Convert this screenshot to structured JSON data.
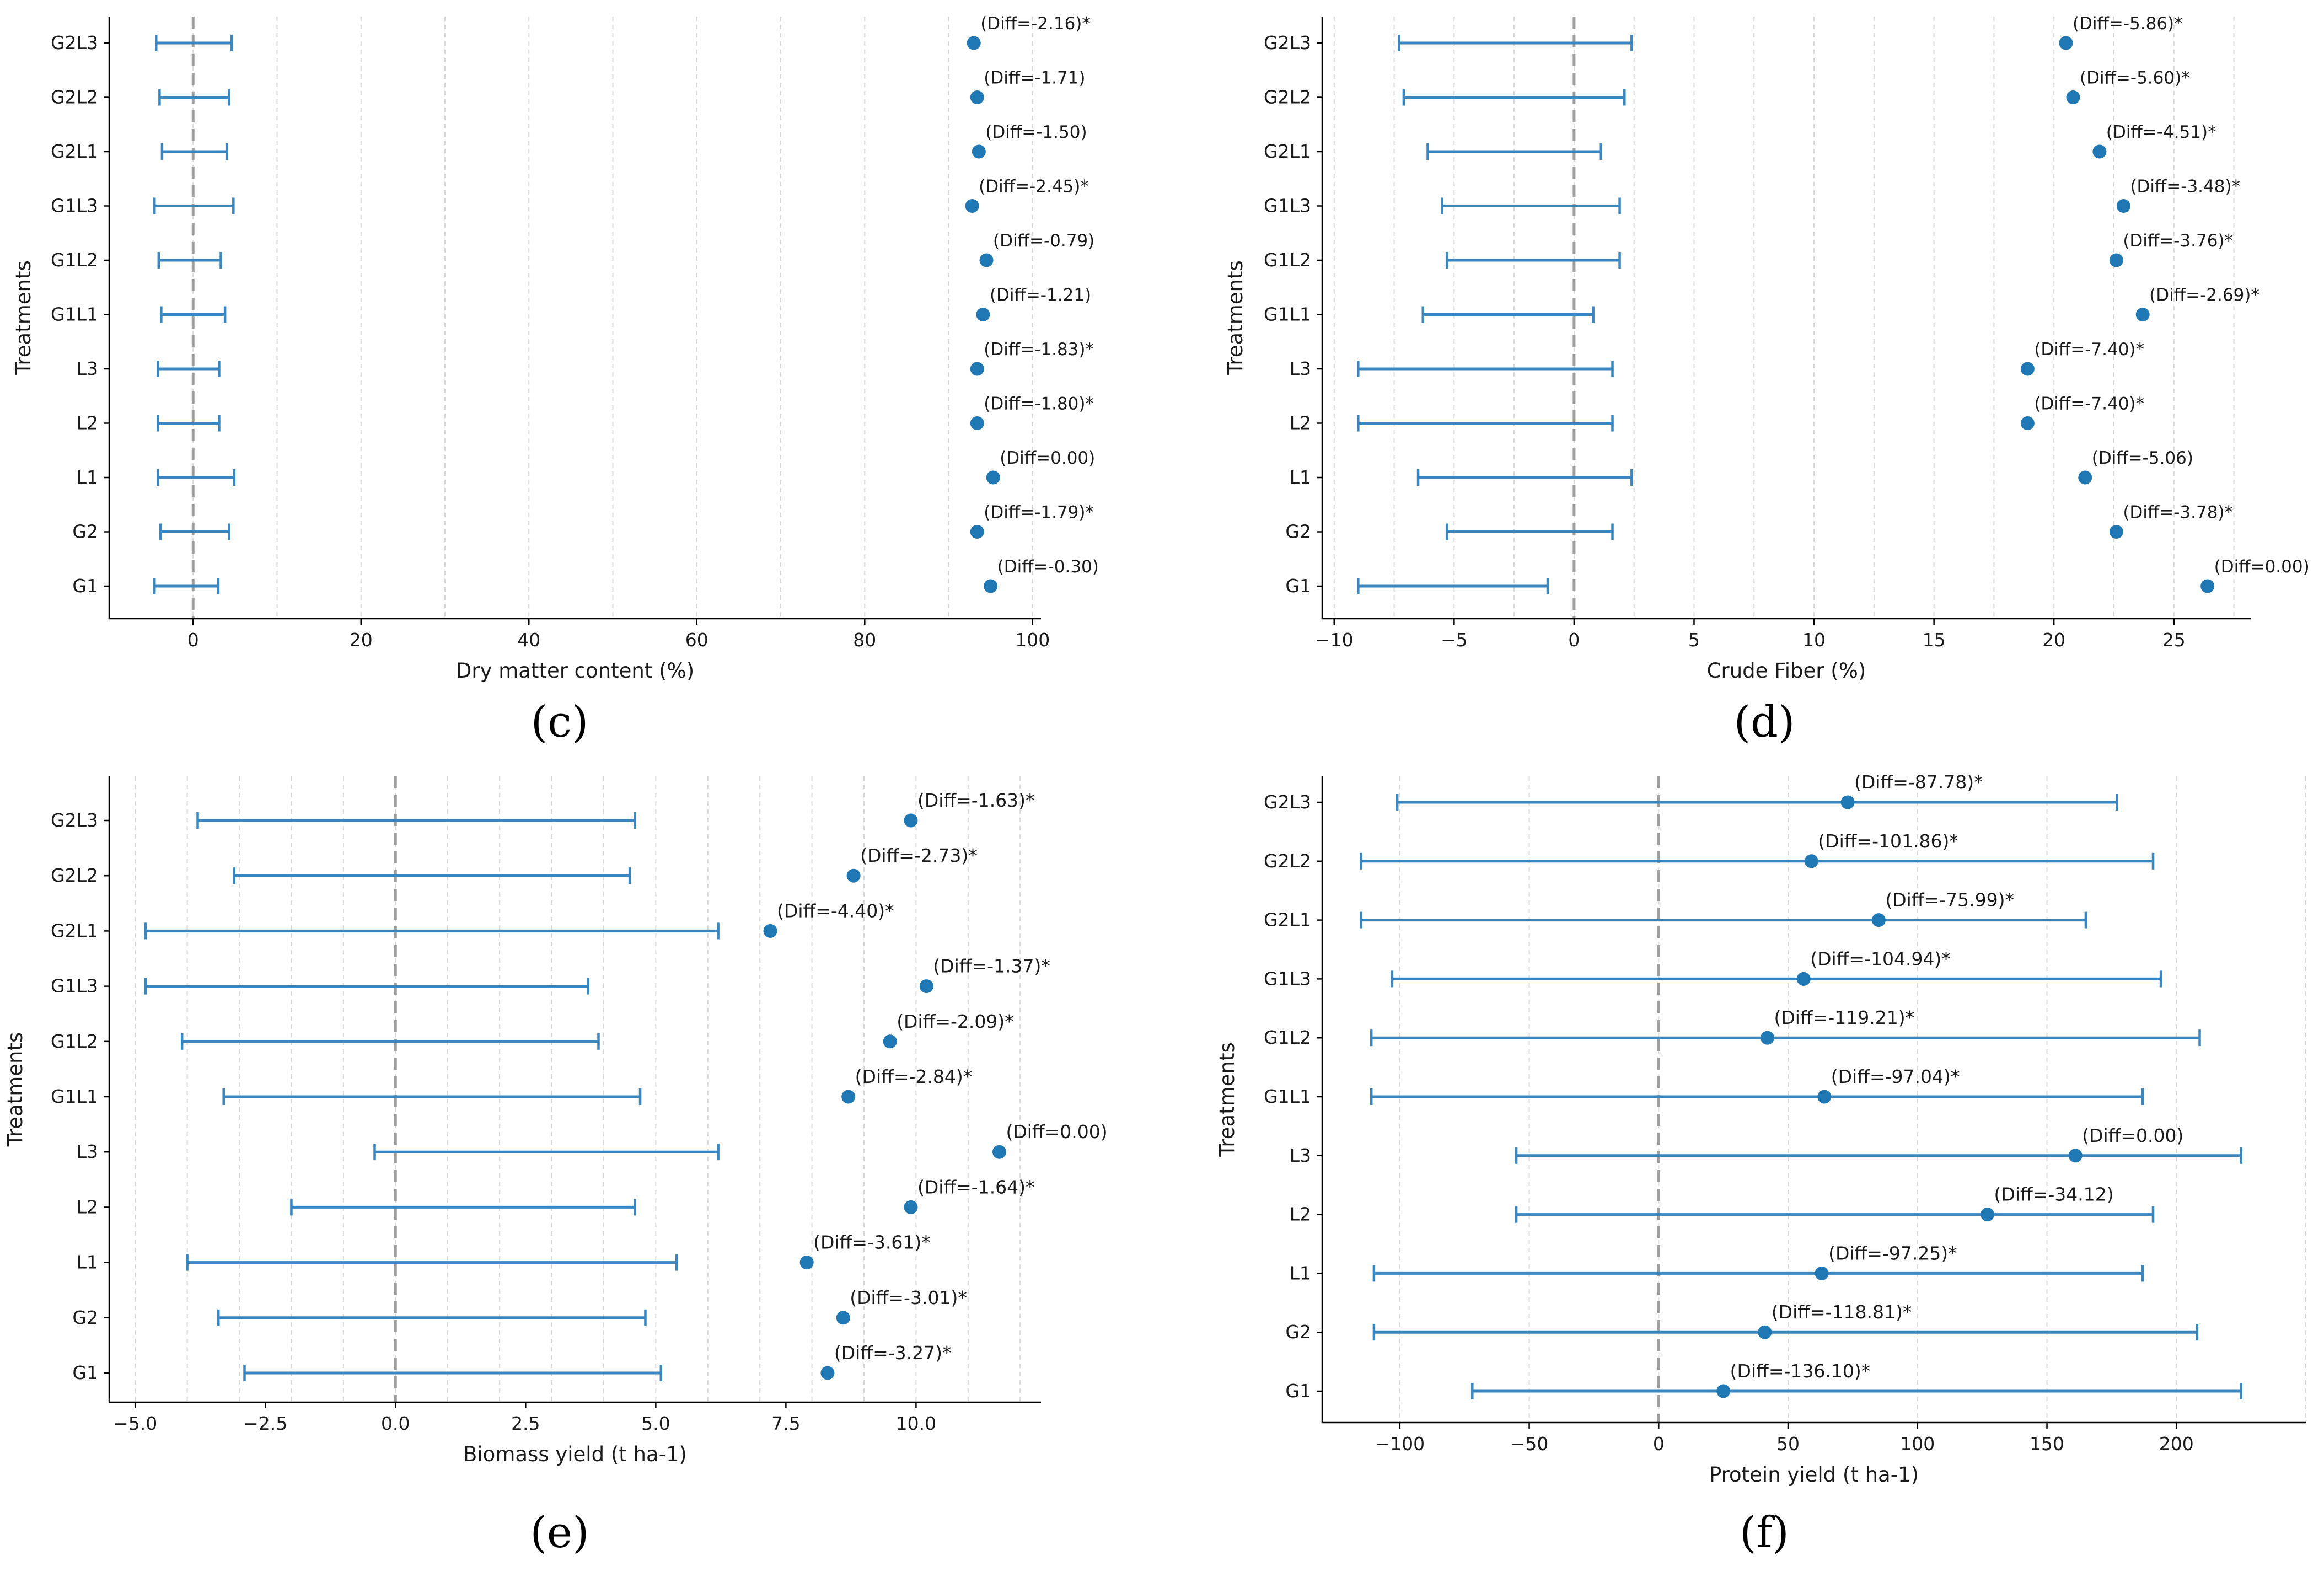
{
  "colors": {
    "series": "#1f77b4",
    "bar": "#3a86c0",
    "zero_line": "#9e9e9e",
    "grid": "#d6d6d6",
    "axis": "#000000"
  },
  "chart_data": [
    {
      "panel": "(c)",
      "type": "scatter",
      "title": "",
      "xlabel": "Dry matter content (%)",
      "ylabel": "Treatments",
      "xlim": [
        -10,
        101
      ],
      "xticks": [
        0,
        20,
        40,
        60,
        80,
        100
      ],
      "xtick_labels": [
        "0",
        "20",
        "40",
        "60",
        "80",
        "100"
      ],
      "grid_x": [
        0,
        10,
        20,
        30,
        40,
        50,
        60,
        70,
        80,
        90,
        100
      ],
      "categories": [
        "G2L3",
        "G2L2",
        "G2L1",
        "G1L3",
        "G1L2",
        "G1L1",
        "L3",
        "L2",
        "L1",
        "G2",
        "G1"
      ],
      "means": [
        93.0,
        93.4,
        93.6,
        92.8,
        94.5,
        94.1,
        93.4,
        93.4,
        95.3,
        93.4,
        95.0
      ],
      "ci_low": [
        -4.4,
        -4.0,
        -3.7,
        -4.6,
        -4.1,
        -3.8,
        -4.2,
        -4.2,
        -4.2,
        -3.9,
        -4.6
      ],
      "ci_high": [
        4.6,
        4.3,
        4.0,
        4.8,
        3.3,
        3.8,
        3.1,
        3.1,
        4.9,
        4.3,
        3.0
      ],
      "labels": [
        "(Diff=-2.16)*",
        "(Diff=-1.71)",
        "(Diff=-1.50)",
        "(Diff=-2.45)*",
        "(Diff=-0.79)",
        "(Diff=-1.21)",
        "(Diff=-1.83)*",
        "(Diff=-1.80)*",
        "(Diff=0.00)",
        "(Diff=-1.79)*",
        "(Diff=-0.30)"
      ]
    },
    {
      "panel": "(d)",
      "type": "scatter",
      "title": "",
      "xlabel": "Crude Fiber (%)",
      "ylabel": "Treatments",
      "xlim": [
        -10.5,
        28.2
      ],
      "xticks": [
        -10,
        -5,
        0,
        5,
        10,
        15,
        20,
        25
      ],
      "xtick_labels": [
        "−10",
        "−5",
        "0",
        "5",
        "10",
        "15",
        "20",
        "25"
      ],
      "grid_x": [
        -10,
        -7.5,
        -5,
        -2.5,
        0,
        2.5,
        5,
        7.5,
        10,
        12.5,
        15,
        17.5,
        20,
        22.5,
        25,
        27.5
      ],
      "categories": [
        "G2L3",
        "G2L2",
        "G2L1",
        "G1L3",
        "G1L2",
        "G1L1",
        "L3",
        "L2",
        "L1",
        "G2",
        "G1"
      ],
      "means": [
        20.5,
        20.8,
        21.9,
        22.9,
        22.6,
        23.7,
        18.9,
        18.9,
        21.3,
        22.6,
        26.4
      ],
      "ci_low": [
        -7.3,
        -7.1,
        -6.1,
        -5.5,
        -5.3,
        -6.3,
        -9.0,
        -9.0,
        -6.5,
        -5.3,
        -9.0
      ],
      "ci_high": [
        2.4,
        2.1,
        1.1,
        1.9,
        1.9,
        0.8,
        1.6,
        1.6,
        2.4,
        1.6,
        -1.1
      ],
      "labels": [
        "(Diff=-5.86)*",
        "(Diff=-5.60)*",
        "(Diff=-4.51)*",
        "(Diff=-3.48)*",
        "(Diff=-3.76)*",
        "(Diff=-2.69)*",
        "(Diff=-7.40)*",
        "(Diff=-7.40)*",
        "(Diff=-5.06)",
        "(Diff=-3.78)*",
        "(Diff=0.00)"
      ]
    },
    {
      "panel": "(e)",
      "type": "scatter",
      "title": "",
      "xlabel": "Biomass yield (t ha-1)",
      "ylabel": "Treatments",
      "xlim": [
        -5.5,
        12.4
      ],
      "xticks": [
        -5.0,
        -2.5,
        0.0,
        2.5,
        5.0,
        7.5,
        10.0
      ],
      "xtick_labels": [
        "−5.0",
        "−2.5",
        "0.0",
        "2.5",
        "5.0",
        "7.5",
        "10.0"
      ],
      "grid_x": [
        -5,
        -4,
        -3,
        -2,
        -1,
        0,
        1,
        2,
        3,
        4,
        5,
        6,
        7,
        8,
        9,
        10,
        11,
        12
      ],
      "categories": [
        "G2L3",
        "G2L2",
        "G2L1",
        "G1L3",
        "G1L2",
        "G1L1",
        "L3",
        "L2",
        "L1",
        "G2",
        "G1"
      ],
      "means": [
        9.9,
        8.8,
        7.2,
        10.2,
        9.5,
        8.7,
        11.6,
        9.9,
        7.9,
        8.6,
        8.3
      ],
      "ci_low": [
        -3.8,
        -3.1,
        -4.8,
        -4.8,
        -4.1,
        -3.3,
        -0.4,
        -2.0,
        -4.0,
        -3.4,
        -2.9
      ],
      "ci_high": [
        4.6,
        4.5,
        6.2,
        3.7,
        3.9,
        4.7,
        6.2,
        4.6,
        5.4,
        4.8,
        5.1
      ],
      "labels": [
        "(Diff=-1.63)*",
        "(Diff=-2.73)*",
        "(Diff=-4.40)*",
        "(Diff=-1.37)*",
        "(Diff=-2.09)*",
        "(Diff=-2.84)*",
        "(Diff=0.00)",
        "(Diff=-1.64)*",
        "(Diff=-3.61)*",
        "(Diff=-3.01)*",
        "(Diff=-3.27)*"
      ]
    },
    {
      "panel": "(f)",
      "type": "scatter",
      "title": "",
      "xlabel": "Protein yield (t ha-1)",
      "ylabel": "Treatments",
      "xlim": [
        -130,
        250
      ],
      "xticks": [
        -100,
        -50,
        0,
        50,
        100,
        150,
        200
      ],
      "xtick_labels": [
        "−100",
        "−50",
        "0",
        "50",
        "100",
        "150",
        "200"
      ],
      "grid_x": [
        -100,
        -50,
        0,
        50,
        100,
        150,
        200,
        250
      ],
      "categories": [
        "G2L3",
        "G2L2",
        "G2L1",
        "G1L3",
        "G1L2",
        "G1L1",
        "L3",
        "L2",
        "L1",
        "G2",
        "G1"
      ],
      "means": [
        73,
        59,
        85,
        56,
        42,
        64,
        161,
        127,
        63,
        41,
        25
      ],
      "ci_low": [
        -101,
        -115,
        -115,
        -103,
        -111,
        -111,
        -55,
        -55,
        -110,
        -110,
        -72
      ],
      "ci_high": [
        177,
        191,
        165,
        194,
        209,
        187,
        225,
        191,
        187,
        208,
        225
      ],
      "labels": [
        "(Diff=-87.78)*",
        "(Diff=-101.86)*",
        "(Diff=-75.99)*",
        "(Diff=-104.94)*",
        "(Diff=-119.21)*",
        "(Diff=-97.04)*",
        "(Diff=0.00)",
        "(Diff=-34.12)",
        "(Diff=-97.25)*",
        "(Diff=-118.81)*",
        "(Diff=-136.10)*"
      ]
    }
  ]
}
